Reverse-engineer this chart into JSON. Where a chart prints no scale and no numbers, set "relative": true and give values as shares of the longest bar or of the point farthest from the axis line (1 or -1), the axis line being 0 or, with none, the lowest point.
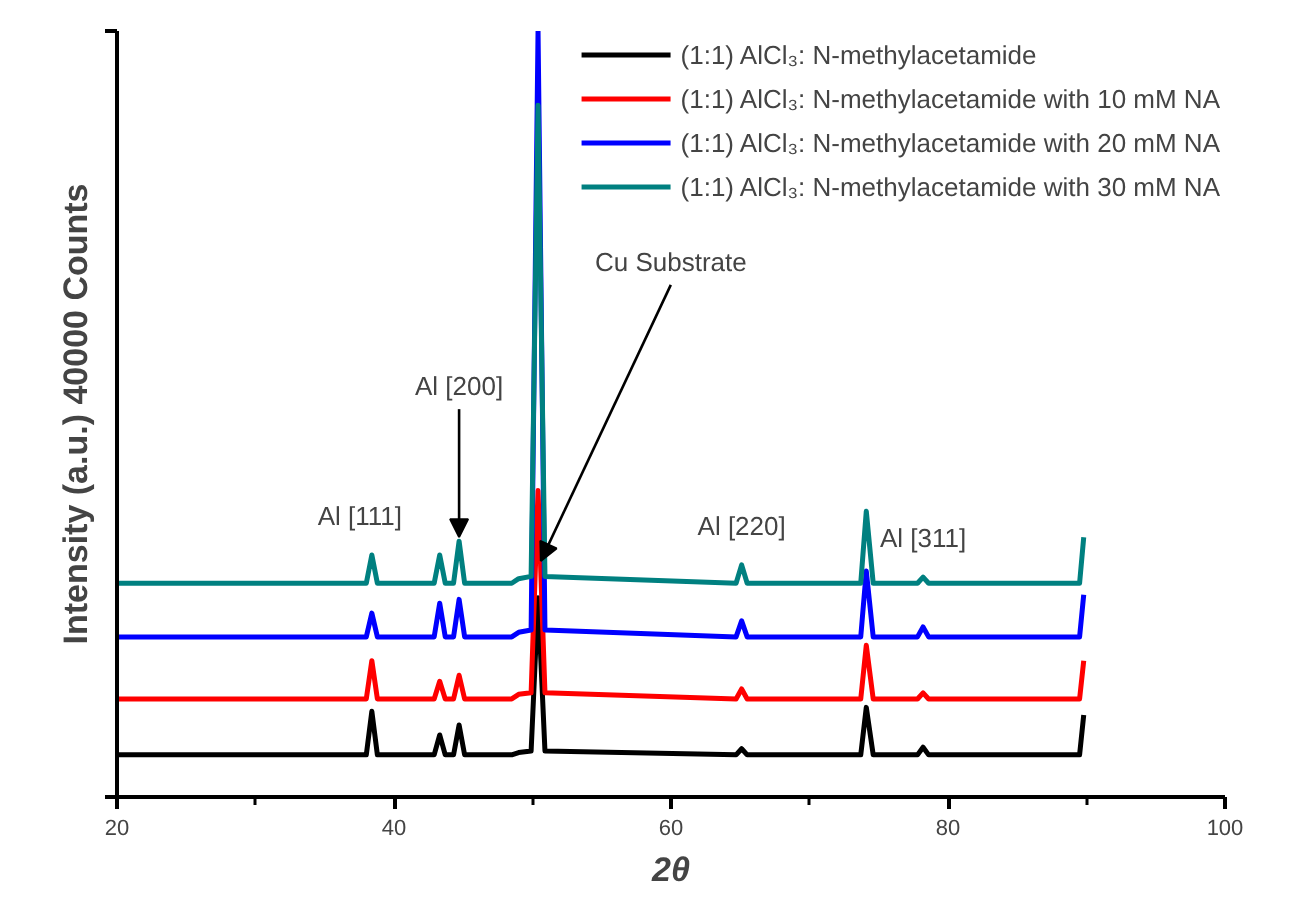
{
  "chart_data": {
    "type": "line",
    "relative": true,
    "xlabel": "2θ",
    "ylabel": "Intensity (a.u.) 40000 Counts",
    "x": [
      20,
      38.0,
      38.4,
      38.8,
      42.9,
      43.3,
      43.7,
      44.3,
      44.7,
      45.1,
      48.5,
      49.0,
      49.9,
      50.4,
      50.9,
      64.7,
      65.1,
      65.5,
      73.7,
      74.1,
      74.6,
      77.8,
      78.2,
      78.6,
      89.5,
      89.8
    ],
    "series": [
      {
        "name": "(1:1) AlCl₃: N-methylacetamide",
        "color": "#000000",
        "values": [
          0.055,
          0.055,
          0.112,
          0.055,
          0.055,
          0.081,
          0.055,
          0.055,
          0.094,
          0.055,
          0.055,
          0.058,
          0.06,
          0.26,
          0.06,
          0.055,
          0.063,
          0.055,
          0.055,
          0.117,
          0.055,
          0.055,
          0.065,
          0.055,
          0.055,
          0.107
        ]
      },
      {
        "name": "(1:1) AlCl₃: N-methylacetamide with 10 mM NA",
        "color": "#ff0000",
        "values": [
          0.128,
          0.128,
          0.178,
          0.128,
          0.128,
          0.151,
          0.128,
          0.128,
          0.159,
          0.128,
          0.128,
          0.134,
          0.136,
          0.4,
          0.136,
          0.128,
          0.141,
          0.128,
          0.128,
          0.198,
          0.128,
          0.128,
          0.136,
          0.128,
          0.128,
          0.178
        ]
      },
      {
        "name": "(1:1) AlCl₃: N-methylacetamide with 20 mM NA",
        "color": "#0000ff",
        "values": [
          0.209,
          0.209,
          0.24,
          0.209,
          0.209,
          0.253,
          0.209,
          0.209,
          0.258,
          0.209,
          0.209,
          0.215,
          0.218,
          1.0,
          0.218,
          0.209,
          0.23,
          0.209,
          0.209,
          0.295,
          0.209,
          0.209,
          0.222,
          0.209,
          0.209,
          0.264
        ]
      },
      {
        "name": "(1:1) AlCl₃: N-methylacetamide with 30 mM NA",
        "color": "#008080",
        "values": [
          0.279,
          0.279,
          0.316,
          0.279,
          0.279,
          0.316,
          0.279,
          0.279,
          0.334,
          0.279,
          0.279,
          0.285,
          0.288,
          0.903,
          0.288,
          0.279,
          0.303,
          0.279,
          0.279,
          0.373,
          0.279,
          0.279,
          0.287,
          0.279,
          0.279,
          0.339
        ]
      }
    ],
    "xlim": [
      20,
      100
    ],
    "xticks": [
      20,
      40,
      60,
      80,
      100
    ],
    "tick_labels": "x",
    "grid": false,
    "legend": "top right",
    "marker": "none",
    "line_style": "solid",
    "annotations": [
      {
        "text": "Al [111]",
        "x": 38.4,
        "y": 0.316
      },
      {
        "text": "Al [200]",
        "x": 44.7,
        "y": 0.334
      },
      {
        "text": "Cu Substrate",
        "x": 50.6,
        "y": 0.303
      },
      {
        "text": "Al [220]",
        "x": 65.1,
        "y": 0.303
      },
      {
        "text": "Al [311]",
        "x": 78.2,
        "y": 0.287
      }
    ]
  }
}
